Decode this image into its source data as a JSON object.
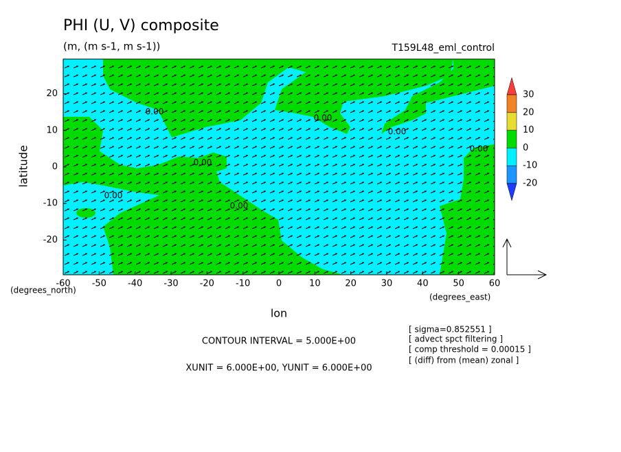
{
  "chart_data": {
    "type": "contour",
    "title": "PHI (U, V) composite",
    "units": "(m, (m s-1, m s-1))",
    "run": "T159L48_eml_control",
    "y_label": "latitude",
    "y_unit": "(degrees_north)",
    "x_label": "lon",
    "x_unit": "(degrees_east)",
    "contour_interval": "CONTOUR INTERVAL = 5.000E+00",
    "vector_units": "XUNIT = 6.000E+00, YUNIT = 6.000E+00",
    "notes": [
      "[ sigma=0.852551 ]",
      "[ advect spct filtering ]",
      "[ comp threshold = 0.00015 ]",
      "[ (diff) from (mean) zonal ]"
    ],
    "contour_labels": [
      "0.00",
      "0.00",
      "0.00",
      "0.00",
      "0.00",
      "0.00",
      "0.00"
    ],
    "xlim": [
      -60,
      60
    ],
    "xticks": [
      -60,
      -50,
      -40,
      -30,
      -20,
      -10,
      0,
      10,
      20,
      30,
      40,
      50,
      60
    ],
    "ylim": [
      -29.5,
      29.5
    ],
    "yticks": [
      -20,
      -10,
      0,
      10,
      20
    ],
    "colorbar": {
      "levels": [
        -20,
        -10,
        0,
        10,
        20,
        30
      ],
      "colors": [
        "#1e3cff",
        "#1e96ff",
        "#00f0ff",
        "#00dc00",
        "#e6dc32",
        "#f08228",
        "#fa3c3c"
      ]
    }
  }
}
